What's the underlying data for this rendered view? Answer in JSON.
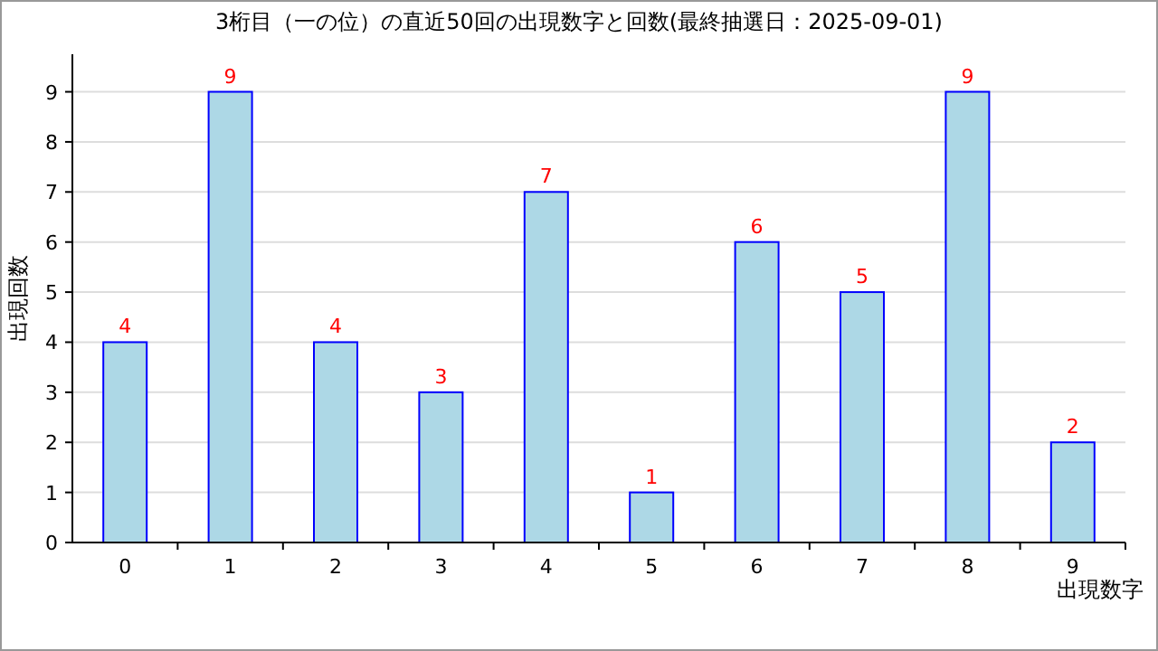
{
  "chart_data": {
    "type": "bar",
    "title": "3桁目（一の位）の直近50回の出現数字と回数(最終抽選日：2025-09-01)",
    "xlabel": "出現数字",
    "ylabel": "出現回数",
    "categories": [
      "0",
      "1",
      "2",
      "3",
      "4",
      "5",
      "6",
      "7",
      "8",
      "9"
    ],
    "series": [
      {
        "color": "#add8e6",
        "values": [
          4,
          9,
          4,
          3,
          7,
          1,
          6,
          5,
          9,
          2
        ]
      }
    ],
    "ylim": [
      0,
      9.75
    ],
    "yticks": [
      0,
      1,
      2,
      3,
      4,
      5,
      6,
      7,
      8,
      9
    ],
    "grid": "y",
    "data_labels": true
  }
}
